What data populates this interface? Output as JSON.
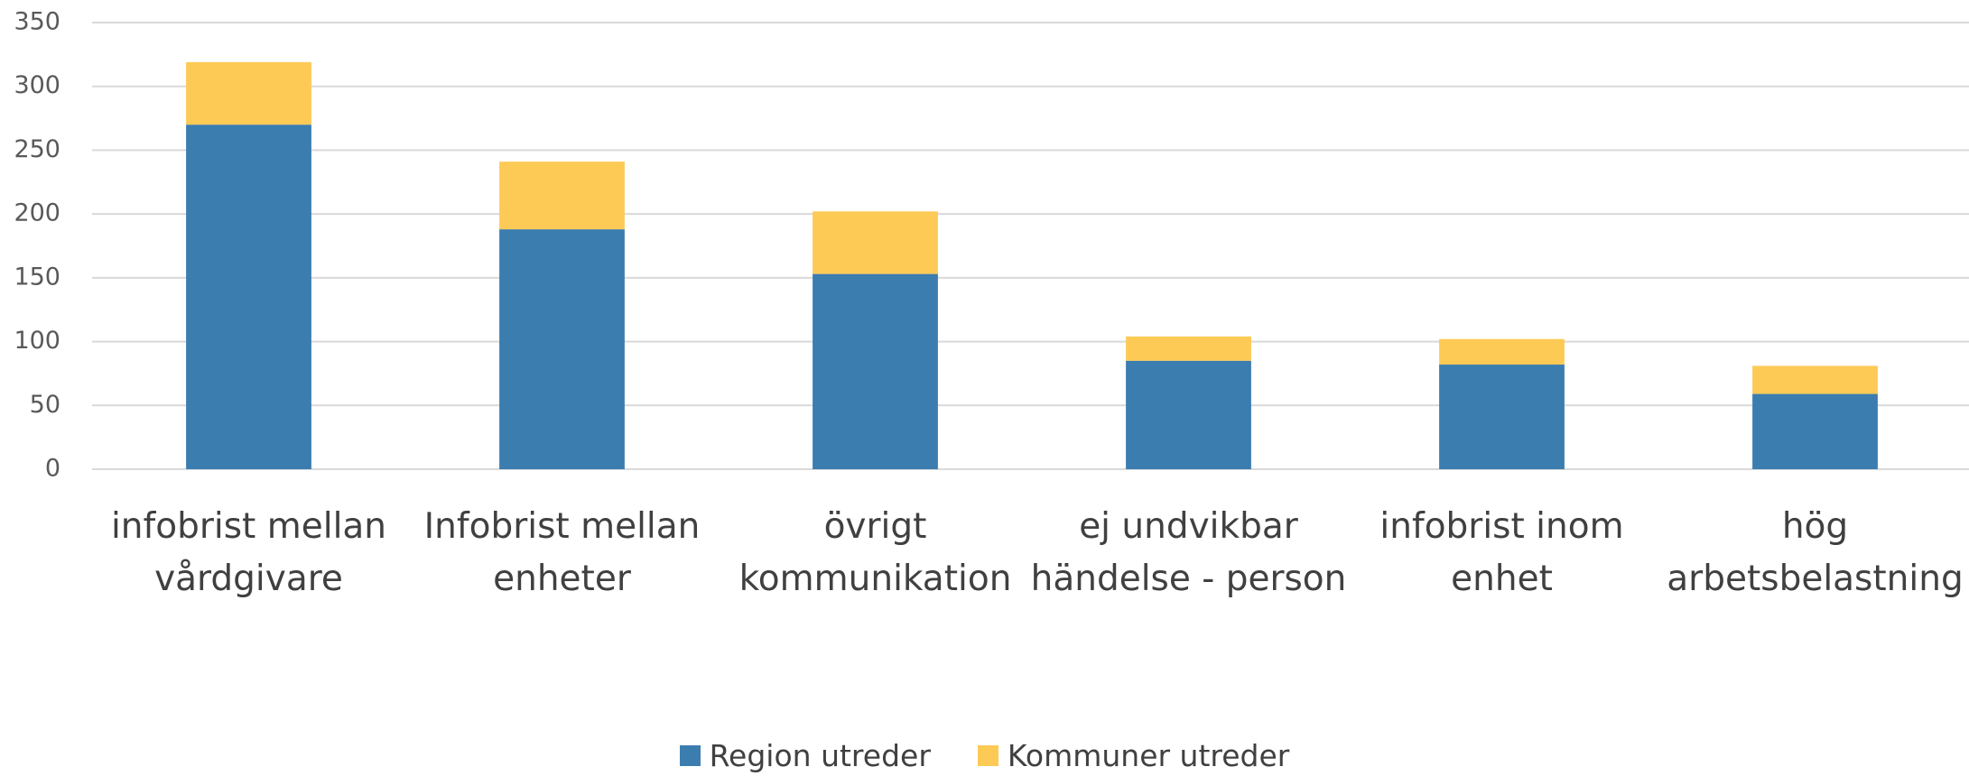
{
  "chart_data": {
    "type": "stacked_bar",
    "categories": [
      "infobrist mellan vårdgivare",
      "Infobrist mellan enheter",
      "övrigt kommunikation",
      "ej undvikbar händelse - person",
      "infobrist inom enhet",
      "hög arbetsbelastning"
    ],
    "series": [
      {
        "name": "Region utreder",
        "color": "#3c7db0",
        "values": [
          270,
          188,
          153,
          85,
          82,
          59
        ]
      },
      {
        "name": "Kommuner utreder",
        "color": "#fdca55",
        "values": [
          49,
          53,
          49,
          19,
          20,
          22
        ]
      }
    ],
    "ylim": [
      0,
      350
    ],
    "yticks": [
      0,
      50,
      100,
      150,
      200,
      250,
      300,
      350
    ],
    "grid": true,
    "legend": "bottom"
  }
}
